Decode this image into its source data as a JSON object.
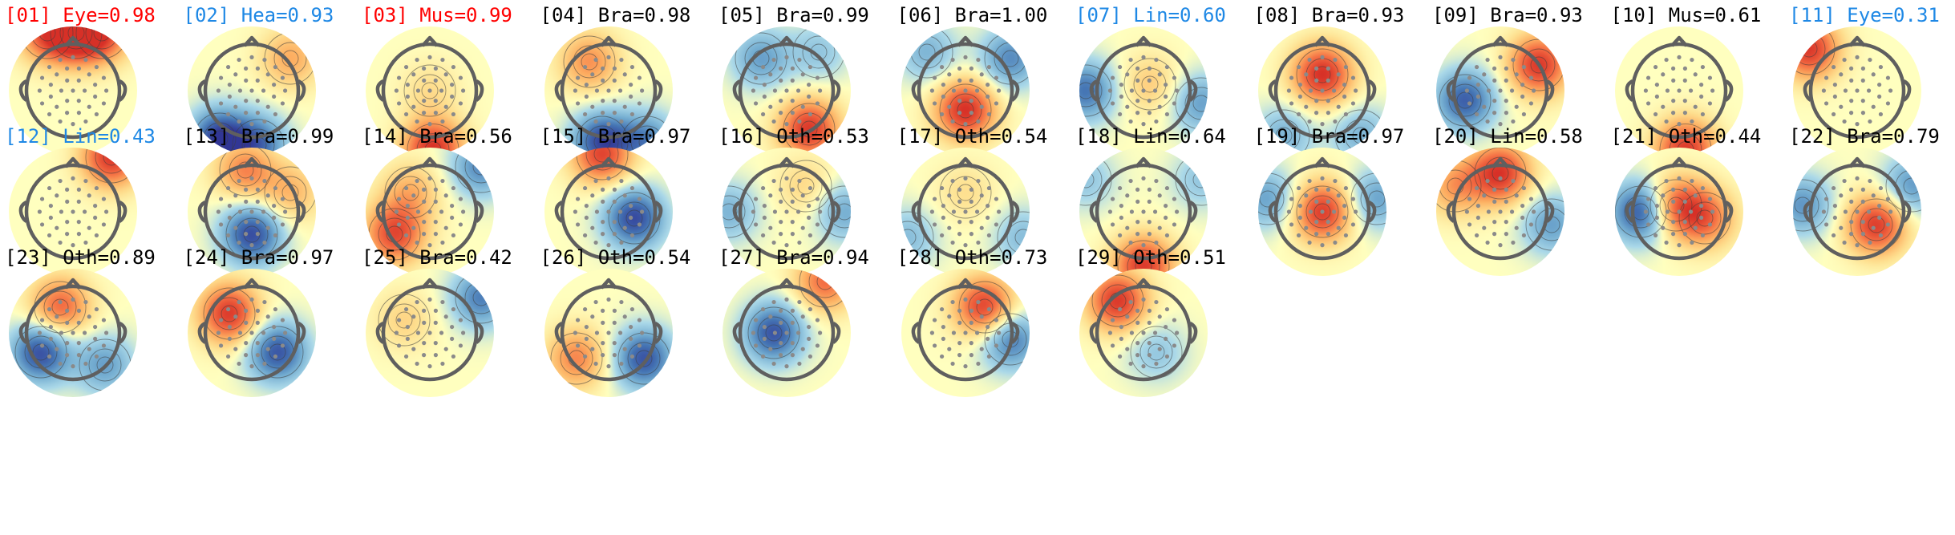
{
  "figure": "ICA component topographic maps",
  "colors": {
    "Eye": "#ff0000",
    "Heart": "#1e88e5",
    "Muscle": "#ff0000",
    "Line Noise": "#1e88e5",
    "Brain": "#000000",
    "Other": "#000000",
    "Channel": "#1e88e5"
  },
  "chart_data": {
    "type": "topomap-grid",
    "items": [
      {
        "index": "01",
        "label": "Eye",
        "prob": 0.98,
        "title": "[01] Eye=0.98",
        "title_color": "#ff0000",
        "features": [
          {
            "value": 0.95,
            "x": 0.05,
            "y": 0.9
          },
          {
            "value": 0.7,
            "x": -0.4,
            "y": 0.9
          },
          {
            "value": 0.7,
            "x": 0.45,
            "y": 0.9
          }
        ]
      },
      {
        "index": "02",
        "label": "Hea",
        "prob": 0.93,
        "title": "[02] Hea=0.93",
        "title_color": "#1e88e5",
        "features": [
          {
            "value": -0.95,
            "x": -0.5,
            "y": -0.75
          },
          {
            "value": -0.7,
            "x": 0.1,
            "y": -0.85
          },
          {
            "value": 0.45,
            "x": 0.6,
            "y": 0.5
          }
        ]
      },
      {
        "index": "03",
        "label": "Mus",
        "prob": 0.99,
        "title": "[03] Mus=0.99",
        "title_color": "#ff0000",
        "features": [
          {
            "value": 1.0,
            "x": 0.05,
            "y": -0.92
          },
          {
            "value": 0.2,
            "x": 0.0,
            "y": 0.0
          }
        ]
      },
      {
        "index": "04",
        "label": "Bra",
        "prob": 0.98,
        "title": "[04] Bra=0.98",
        "title_color": "#000000",
        "features": [
          {
            "value": 0.55,
            "x": -0.3,
            "y": 0.45
          },
          {
            "value": -0.9,
            "x": -0.1,
            "y": -0.8
          },
          {
            "value": -0.6,
            "x": 0.6,
            "y": -0.8
          }
        ]
      },
      {
        "index": "05",
        "label": "Bra",
        "prob": 0.99,
        "title": "[05] Bra=0.99",
        "title_color": "#000000",
        "features": [
          {
            "value": 0.95,
            "x": 0.35,
            "y": -0.6
          },
          {
            "value": -0.5,
            "x": -0.4,
            "y": 0.5
          },
          {
            "value": -0.3,
            "x": 0.5,
            "y": 0.6
          }
        ]
      },
      {
        "index": "06",
        "label": "Bra",
        "prob": 1.0,
        "title": "[06] Bra=1.00",
        "title_color": "#000000",
        "features": [
          {
            "value": 1.0,
            "x": 0.0,
            "y": -0.3
          },
          {
            "value": -0.6,
            "x": 0.7,
            "y": 0.5
          },
          {
            "value": -0.4,
            "x": -0.6,
            "y": 0.6
          }
        ]
      },
      {
        "index": "07",
        "label": "Lin",
        "prob": 0.6,
        "title": "[07] Lin=0.60",
        "title_color": "#1e88e5",
        "features": [
          {
            "value": -0.7,
            "x": -0.9,
            "y": 0.0
          },
          {
            "value": -0.5,
            "x": 0.9,
            "y": -0.2
          },
          {
            "value": 0.3,
            "x": 0.1,
            "y": 0.1
          }
        ]
      },
      {
        "index": "08",
        "label": "Bra",
        "prob": 0.93,
        "title": "[08] Bra=0.93",
        "title_color": "#000000",
        "features": [
          {
            "value": 1.0,
            "x": 0.0,
            "y": 0.25
          },
          {
            "value": -0.4,
            "x": -0.6,
            "y": -0.7
          },
          {
            "value": -0.4,
            "x": 0.6,
            "y": -0.7
          }
        ]
      },
      {
        "index": "09",
        "label": "Bra",
        "prob": 0.93,
        "title": "[09] Bra=0.93",
        "title_color": "#000000",
        "features": [
          {
            "value": 0.95,
            "x": 0.6,
            "y": 0.4
          },
          {
            "value": -0.8,
            "x": -0.55,
            "y": -0.15
          }
        ]
      },
      {
        "index": "10",
        "label": "Mus",
        "prob": 0.61,
        "title": "[10] Mus=0.61",
        "title_color": "#000000",
        "features": [
          {
            "value": 0.95,
            "x": 0.1,
            "y": -0.92
          }
        ]
      },
      {
        "index": "11",
        "label": "Eye",
        "prob": 0.31,
        "title": "[11] Eye=0.31",
        "title_color": "#1e88e5",
        "features": [
          {
            "value": 0.95,
            "x": -0.75,
            "y": 0.65
          }
        ]
      },
      {
        "index": "12",
        "label": "Lin",
        "prob": 0.43,
        "title": "[12] Lin=0.43",
        "title_color": "#1e88e5",
        "features": [
          {
            "value": 0.95,
            "x": 0.6,
            "y": 0.85
          }
        ]
      },
      {
        "index": "13",
        "label": "Bra",
        "prob": 0.99,
        "title": "[13] Bra=0.99",
        "title_color": "#000000",
        "features": [
          {
            "value": -0.9,
            "x": 0.0,
            "y": -0.35
          },
          {
            "value": 0.6,
            "x": -0.1,
            "y": 0.65
          },
          {
            "value": 0.4,
            "x": 0.6,
            "y": 0.3
          }
        ]
      },
      {
        "index": "14",
        "label": "Bra",
        "prob": 0.56,
        "title": "[14] Bra=0.56",
        "title_color": "#000000",
        "features": [
          {
            "value": 0.85,
            "x": -0.55,
            "y": -0.35
          },
          {
            "value": -0.6,
            "x": 0.8,
            "y": 0.7
          },
          {
            "value": 0.4,
            "x": -0.3,
            "y": 0.3
          }
        ]
      },
      {
        "index": "15",
        "label": "Bra",
        "prob": 0.97,
        "title": "[15] Bra=0.97",
        "title_color": "#000000",
        "features": [
          {
            "value": -0.9,
            "x": 0.4,
            "y": -0.1
          },
          {
            "value": 0.9,
            "x": -0.1,
            "y": 0.9
          }
        ]
      },
      {
        "index": "16",
        "label": "Oth",
        "prob": 0.53,
        "title": "[16] Oth=0.53",
        "title_color": "#000000",
        "features": [
          {
            "value": -0.45,
            "x": 0.9,
            "y": 0.0
          },
          {
            "value": -0.4,
            "x": -0.9,
            "y": 0.0
          },
          {
            "value": 0.25,
            "x": 0.3,
            "y": 0.4
          }
        ]
      },
      {
        "index": "17",
        "label": "Oth",
        "prob": 0.54,
        "title": "[17] Oth=0.54",
        "title_color": "#000000",
        "features": [
          {
            "value": -0.35,
            "x": 0.9,
            "y": -0.4
          },
          {
            "value": -0.35,
            "x": -0.9,
            "y": -0.4
          },
          {
            "value": 0.2,
            "x": 0.0,
            "y": 0.3
          }
        ]
      },
      {
        "index": "18",
        "label": "Lin",
        "prob": 0.64,
        "title": "[18] Lin=0.64",
        "title_color": "#000000",
        "features": [
          {
            "value": 0.95,
            "x": 0.0,
            "y": -0.85
          },
          {
            "value": -0.3,
            "x": -0.9,
            "y": 0.5
          },
          {
            "value": -0.3,
            "x": 0.9,
            "y": 0.5
          }
        ]
      },
      {
        "index": "19",
        "label": "Bra",
        "prob": 0.97,
        "title": "[19] Bra=0.97",
        "title_color": "#000000",
        "features": [
          {
            "value": 0.95,
            "x": 0.0,
            "y": 0.0
          },
          {
            "value": -0.5,
            "x": -0.85,
            "y": 0.2
          },
          {
            "value": -0.5,
            "x": 0.85,
            "y": 0.2
          }
        ]
      },
      {
        "index": "20",
        "label": "Lin",
        "prob": 0.58,
        "title": "[20] Lin=0.58",
        "title_color": "#000000",
        "features": [
          {
            "value": 0.95,
            "x": 0.0,
            "y": 0.6
          },
          {
            "value": -0.5,
            "x": 0.8,
            "y": -0.2
          },
          {
            "value": 0.5,
            "x": -0.7,
            "y": 0.4
          }
        ]
      },
      {
        "index": "21",
        "label": "Oth",
        "prob": 0.44,
        "title": "[21] Oth=0.44",
        "title_color": "#000000",
        "features": [
          {
            "value": -0.9,
            "x": -0.6,
            "y": 0.0
          },
          {
            "value": 0.75,
            "x": -0.05,
            "y": 0.1
          },
          {
            "value": 0.65,
            "x": 0.4,
            "y": -0.1
          }
        ]
      },
      {
        "index": "22",
        "label": "Bra",
        "prob": 0.79,
        "title": "[22] Bra=0.79",
        "title_color": "#000000",
        "features": [
          {
            "value": 0.95,
            "x": 0.3,
            "y": -0.2
          },
          {
            "value": -0.55,
            "x": -0.85,
            "y": 0.1
          },
          {
            "value": -0.55,
            "x": 0.85,
            "y": 0.4
          }
        ]
      },
      {
        "index": "23",
        "label": "Oth",
        "prob": 0.89,
        "title": "[23] Oth=0.89",
        "title_color": "#000000",
        "features": [
          {
            "value": 0.75,
            "x": -0.2,
            "y": 0.4
          },
          {
            "value": -0.9,
            "x": -0.5,
            "y": -0.3
          },
          {
            "value": -0.5,
            "x": 0.5,
            "y": -0.5
          }
        ]
      },
      {
        "index": "24",
        "label": "Bra",
        "prob": 0.97,
        "title": "[24] Bra=0.97",
        "title_color": "#000000",
        "features": [
          {
            "value": 0.95,
            "x": -0.35,
            "y": 0.3
          },
          {
            "value": -0.85,
            "x": 0.4,
            "y": -0.3
          }
        ]
      },
      {
        "index": "25",
        "label": "Bra",
        "prob": 0.42,
        "title": "[25] Bra=0.42",
        "title_color": "#000000",
        "features": [
          {
            "value": -0.65,
            "x": 0.8,
            "y": 0.55
          },
          {
            "value": 0.25,
            "x": -0.4,
            "y": 0.2
          }
        ]
      },
      {
        "index": "26",
        "label": "Oth",
        "prob": 0.54,
        "title": "[26] Oth=0.54",
        "title_color": "#000000",
        "features": [
          {
            "value": -0.85,
            "x": 0.55,
            "y": -0.4
          },
          {
            "value": 0.6,
            "x": -0.5,
            "y": -0.4
          }
        ]
      },
      {
        "index": "27",
        "label": "Bra",
        "prob": 0.94,
        "title": "[27] Bra=0.94",
        "title_color": "#000000",
        "features": [
          {
            "value": -0.85,
            "x": -0.2,
            "y": 0.0
          },
          {
            "value": 0.7,
            "x": 0.6,
            "y": 0.8
          }
        ]
      },
      {
        "index": "28",
        "label": "Oth",
        "prob": 0.73,
        "title": "[28] Oth=0.73",
        "title_color": "#000000",
        "features": [
          {
            "value": 0.95,
            "x": 0.3,
            "y": 0.4
          },
          {
            "value": -0.7,
            "x": 0.7,
            "y": -0.1
          }
        ]
      },
      {
        "index": "29",
        "label": "Oth",
        "prob": 0.51,
        "title": "[29] Oth=0.51",
        "title_color": "#000000",
        "features": [
          {
            "value": 0.95,
            "x": -0.4,
            "y": 0.5
          },
          {
            "value": -0.3,
            "x": 0.2,
            "y": -0.3
          }
        ]
      }
    ]
  }
}
